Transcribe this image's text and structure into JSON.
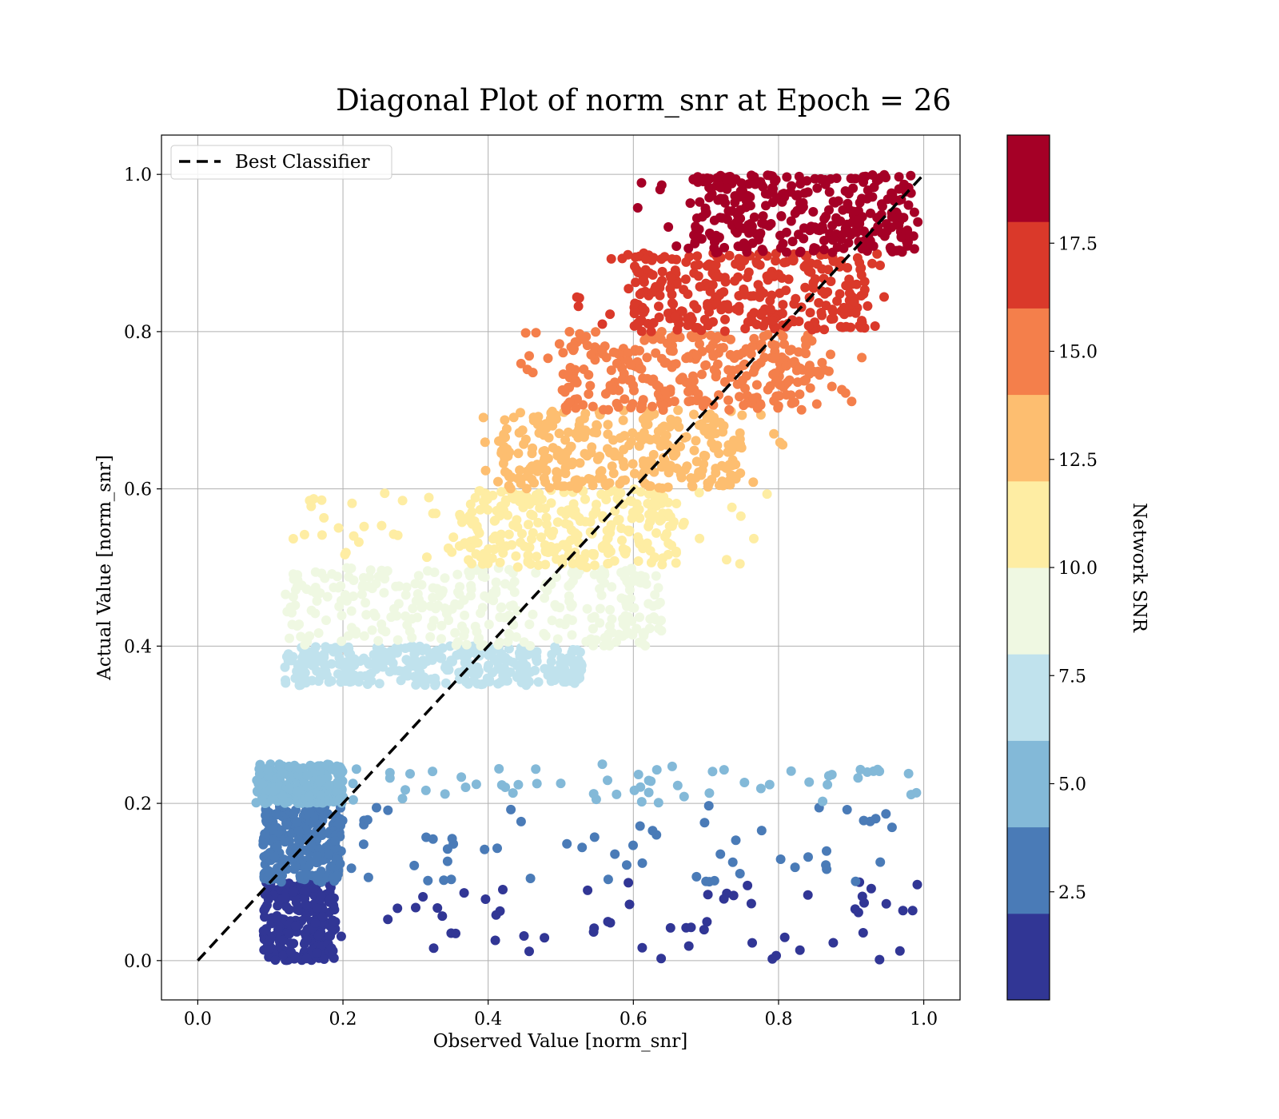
{
  "chart_data": {
    "type": "scatter",
    "title": "Diagonal Plot of norm_snr at Epoch = 26",
    "xlabel": "Observed Value [norm_snr]",
    "ylabel": "Actual Value [norm_snr]",
    "xlim": [
      -0.05,
      1.05
    ],
    "ylim": [
      -0.05,
      1.05
    ],
    "xticks": [
      "0.0",
      "0.2",
      "0.4",
      "0.6",
      "0.8",
      "1.0"
    ],
    "yticks": [
      "0.0",
      "0.2",
      "0.4",
      "0.6",
      "0.8",
      "1.0"
    ],
    "grid": true,
    "legend": {
      "position": "top-left",
      "entries": [
        "Best Classifier"
      ]
    },
    "reference_line": {
      "name": "Best Classifier",
      "style": "dashed",
      "color": "#000000",
      "x": [
        0,
        1
      ],
      "y": [
        0,
        1
      ]
    },
    "colorbar": {
      "label": "Network SNR",
      "range": [
        0,
        20
      ],
      "ticks": [
        "2.5",
        "5.0",
        "7.5",
        "10.0",
        "12.5",
        "15.0",
        "17.5"
      ],
      "colors": [
        "#313695",
        "#4a7bb7",
        "#83b9d8",
        "#c0e2ed",
        "#eff8e2",
        "#feeda3",
        "#fdbe70",
        "#f47f4b",
        "#da392a",
        "#a50026"
      ]
    },
    "bands": [
      {
        "y": [
          0.0,
          0.1
        ],
        "color": "#313695",
        "dense_x": [
          0.09,
          0.19
        ],
        "sparse_x": [
          0.19,
          1.0
        ]
      },
      {
        "y": [
          0.1,
          0.2
        ],
        "color": "#4a7bb7",
        "dense_x": [
          0.09,
          0.2
        ],
        "sparse_x": [
          0.2,
          1.0
        ]
      },
      {
        "y": [
          0.2,
          0.25
        ],
        "color": "#83b9d8",
        "dense_x": [
          0.08,
          0.2
        ],
        "sparse_x": [
          0.2,
          1.0
        ]
      },
      {
        "y": [
          0.35,
          0.4
        ],
        "color": "#c0e2ed",
        "dense_x": [
          0.12,
          0.46
        ],
        "sparse_x": [
          0.46,
          0.53
        ]
      },
      {
        "y": [
          0.4,
          0.5
        ],
        "color": "#eff8e2",
        "dense_x": [
          0.12,
          0.58
        ],
        "sparse_x": [
          0.58,
          0.64
        ]
      },
      {
        "y": [
          0.5,
          0.6
        ],
        "color": "#feeda3",
        "dense_x": [
          0.36,
          0.66
        ],
        "sparse_x": [
          0.12,
          0.8
        ]
      },
      {
        "y": [
          0.6,
          0.7
        ],
        "color": "#fdbe70",
        "dense_x": [
          0.42,
          0.75
        ],
        "sparse_x": [
          0.38,
          0.82
        ]
      },
      {
        "y": [
          0.7,
          0.8
        ],
        "color": "#f47f4b",
        "dense_x": [
          0.5,
          0.85
        ],
        "sparse_x": [
          0.44,
          0.92
        ]
      },
      {
        "y": [
          0.8,
          0.9
        ],
        "color": "#da392a",
        "dense_x": [
          0.6,
          0.92
        ],
        "sparse_x": [
          0.52,
          0.97
        ]
      },
      {
        "y": [
          0.9,
          1.0
        ],
        "color": "#a50026",
        "dense_x": [
          0.68,
          0.99
        ],
        "sparse_x": [
          0.6,
          1.0
        ]
      }
    ]
  }
}
